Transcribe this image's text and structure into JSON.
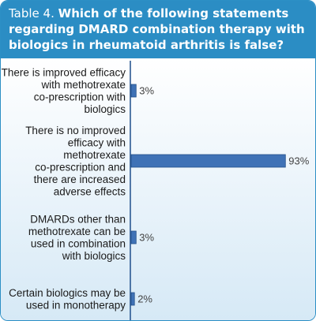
{
  "header": {
    "tag": "Table 4.",
    "title": "Which of the following statements regarding DMARD combination therapy with biologics in rheumatoid arthritis is false?"
  },
  "colors": {
    "header_bg": "#2b8dc4",
    "bar_fill": "#3f72b6",
    "bar_stroke": "#24508a",
    "axis": "#1f4f8c"
  },
  "chart_data": {
    "type": "bar",
    "orientation": "horizontal",
    "categories": [
      "There is improved efficacy with methotrexate co-prescription with biologics",
      "There is no improved efficacy with methotrexate co-prescription and there are increased adverse effects",
      "DMARDs other than methotrexate can be used in combination with biologics",
      "Certain biologics may be used in monotherapy"
    ],
    "category_lines": [
      [
        "There is improved efficacy",
        "with methotrexate",
        "co-prescription with",
        "biologics"
      ],
      [
        "There is no improved",
        "efficacy with",
        "methotrexate",
        "co-prescription and",
        "there are increased",
        "adverse effects"
      ],
      [
        "DMARDs other than",
        "methotrexate can be",
        "used in combination",
        "with biologics"
      ],
      [
        "Certain biologics may be",
        "used in monotherapy"
      ]
    ],
    "values": [
      3,
      93,
      3,
      2
    ],
    "value_labels": [
      "3%",
      "93%",
      "3%",
      "2%"
    ],
    "unit": "%",
    "xlim": [
      0,
      100
    ]
  }
}
